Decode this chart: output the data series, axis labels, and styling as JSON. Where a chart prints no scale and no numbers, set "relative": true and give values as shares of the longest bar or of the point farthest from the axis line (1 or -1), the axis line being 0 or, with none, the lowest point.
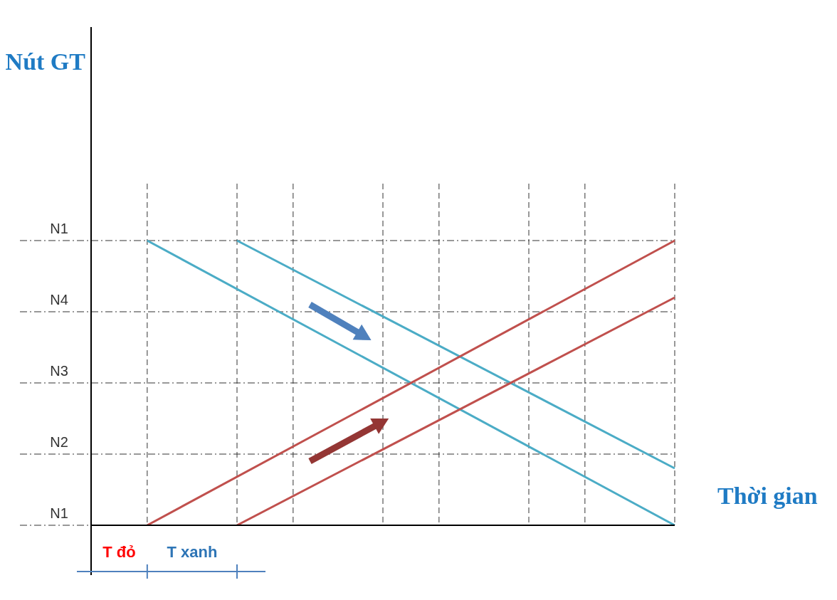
{
  "chart_data": {
    "type": "line",
    "xlabel": "Thời gian",
    "relative": true,
    "categories": [
      null,
      null,
      null,
      null,
      null,
      null,
      null,
      null,
      null,
      null,
      null,
      null,
      null,
      null,
      null,
      null,
      null,
      null,
      null,
      null,
      null,
      null,
      null,
      null,
      null,
      null,
      null,
      null,
      null,
      null,
      null,
      null,
      null,
      null,
      null,
      null,
      null,
      null,
      null,
      null,
      null,
      null,
      null,
      null,
      null,
      null,
      null,
      null,
      null,
      null,
      null,
      null,
      null
    ],
    "grid": true,
    "marker": "none",
    "line_style": "solid",
    "series": [
      {
        "color": "#4bacc6",
        "values": [
          null,
          null,
          null,
          null,
          null,
          1,
          null,
          null,
          null,
          null,
          null,
          null,
          null,
          null,
          null,
          null,
          null,
          null,
          null,
          null,
          null,
          null,
          null,
          null,
          null,
          null,
          null,
          null,
          null,
          null,
          null,
          null,
          null,
          null,
          null,
          null,
          null,
          null,
          null,
          null,
          null,
          null,
          null,
          null,
          null,
          null,
          null,
          null,
          null,
          null,
          null,
          null,
          0
        ]
      },
      {
        "color": "#4bacc6",
        "values": [
          null,
          null,
          null,
          null,
          null,
          null,
          null,
          null,
          null,
          null,
          null,
          null,
          null,
          1,
          null,
          null,
          null,
          null,
          null,
          null,
          null,
          null,
          null,
          null,
          null,
          null,
          null,
          null,
          null,
          null,
          null,
          null,
          null,
          null,
          null,
          null,
          null,
          null,
          null,
          null,
          null,
          null,
          null,
          null,
          null,
          null,
          null,
          null,
          null,
          null,
          null,
          null,
          0.2
        ]
      },
      {
        "color": "#c0504d",
        "values": [
          null,
          null,
          null,
          null,
          null,
          0,
          null,
          null,
          null,
          null,
          null,
          null,
          null,
          null,
          null,
          null,
          null,
          null,
          null,
          null,
          null,
          null,
          null,
          null,
          null,
          null,
          null,
          null,
          null,
          null,
          null,
          null,
          null,
          null,
          null,
          null,
          null,
          null,
          null,
          null,
          null,
          null,
          null,
          null,
          null,
          null,
          null,
          null,
          null,
          null,
          null,
          null,
          1
        ]
      },
      {
        "color": "#c0504d",
        "values": [
          null,
          null,
          null,
          null,
          null,
          null,
          null,
          null,
          null,
          null,
          null,
          null,
          null,
          0,
          null,
          null,
          null,
          null,
          null,
          null,
          null,
          null,
          null,
          null,
          null,
          null,
          null,
          null,
          null,
          null,
          null,
          null,
          null,
          null,
          null,
          null,
          null,
          null,
          null,
          null,
          null,
          null,
          null,
          null,
          null,
          null,
          null,
          null,
          null,
          null,
          null,
          null,
          0.8
        ]
      }
    ],
    "annotations": [
      "Nút GT",
      "N1",
      "N2",
      "N3",
      "N4",
      "N1",
      "T đỏ",
      "T xanh"
    ]
  }
}
